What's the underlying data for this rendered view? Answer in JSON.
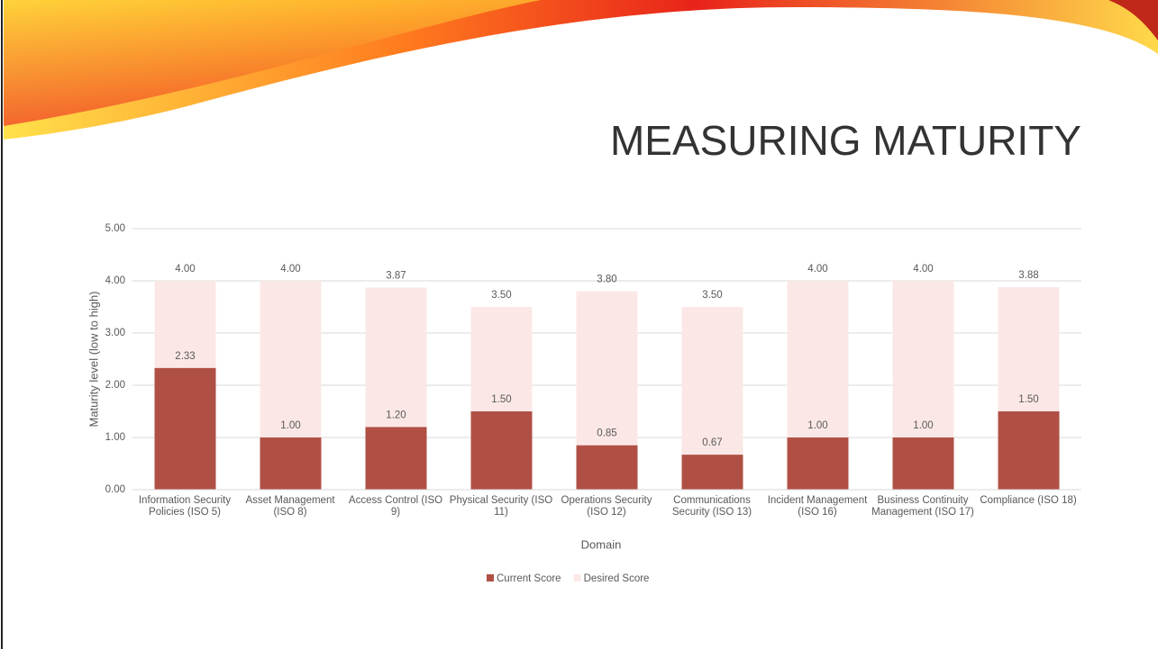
{
  "chart_data": {
    "type": "bar",
    "title": "MEASURING MATURITY",
    "x_label": "Domain",
    "y_label": "Maturity level (low to high)",
    "categories": [
      "Information Security Policies (ISO 5)",
      "Asset Management (ISO 8)",
      "Access Control (ISO 9)",
      "Physical Security (ISO 11)",
      "Operations Security (ISO 12)",
      "Communications Security (ISO 13)",
      "Incident Management (ISO 16)",
      "Business Continuity Management (ISO 17)",
      "Compliance (ISO 18)"
    ],
    "series": [
      {
        "name": "Current Score",
        "color": "#b05045",
        "values": [
          2.33,
          1,
          1.2,
          1.5,
          0.85,
          0.67,
          1,
          1,
          1.5
        ],
        "value_labels": [
          "2.33",
          "1.00",
          "1.20",
          "1.50",
          "0.85",
          "0.67",
          "1.00",
          "1.00",
          "1.50"
        ]
      },
      {
        "name": "Desired Score",
        "color": "#fbe8e6",
        "values": [
          4,
          4,
          3.87,
          3.5,
          3.8,
          3.5,
          4,
          4,
          3.88
        ],
        "value_labels": [
          "4.00",
          "4.00",
          "3.87",
          "3.50",
          "3.80",
          "3.50",
          "4.00",
          "4.00",
          "3.88"
        ]
      }
    ],
    "ylim": [
      0,
      5
    ],
    "yticks": [
      {
        "value": 0,
        "label": "0.00"
      },
      {
        "value": 1,
        "label": "1.00"
      },
      {
        "value": 2,
        "label": "2.00"
      },
      {
        "value": 3,
        "label": "3.00"
      },
      {
        "value": 4,
        "label": "4.00"
      },
      {
        "value": 5,
        "label": "5.00"
      }
    ],
    "grid": true,
    "legend": "bottom"
  }
}
